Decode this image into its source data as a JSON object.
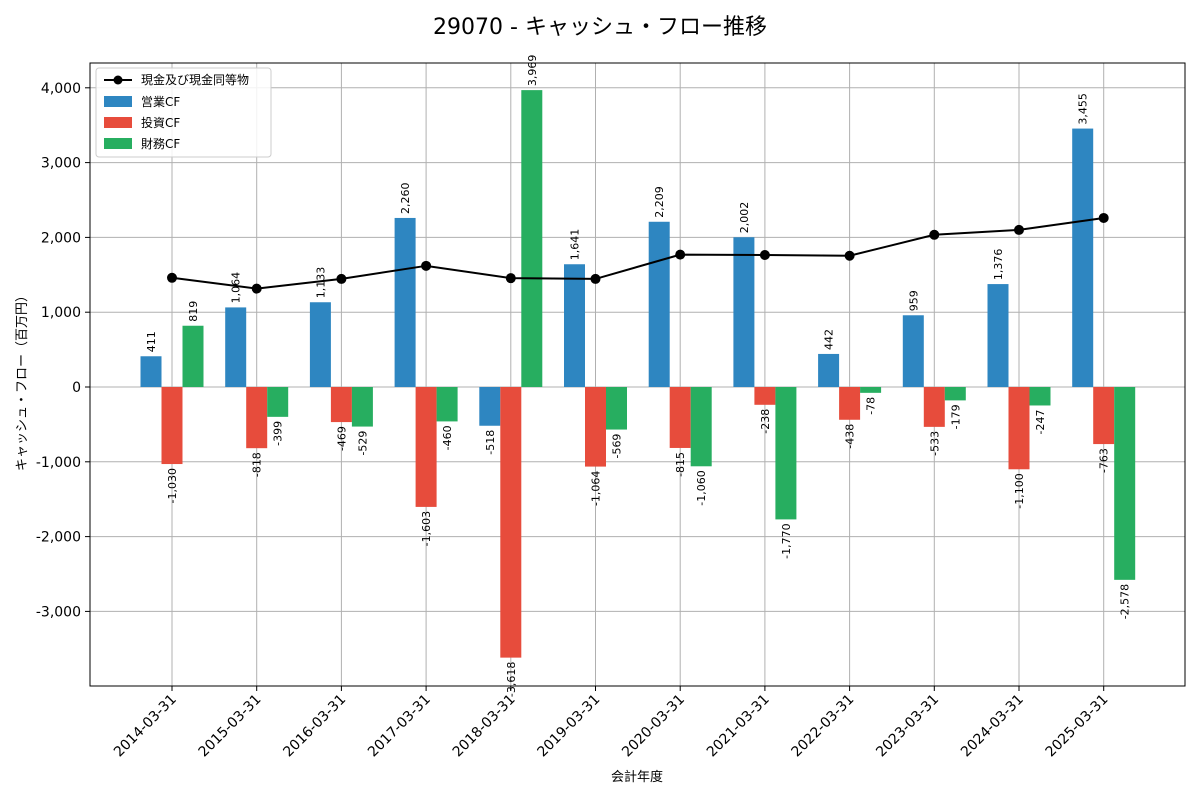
{
  "chart_data": {
    "type": "bar",
    "title": "29070 - キャッシュ・フロー推移",
    "xlabel": "会計年度",
    "ylabel": "キャッシュ・フロー（百万円）",
    "ylim": [
      -4000,
      4300
    ],
    "yticks": [
      -3000,
      -2000,
      -1000,
      0,
      1000,
      2000,
      3000,
      4000
    ],
    "ytick_labels": [
      "-3,000",
      "-2,000",
      "-1,000",
      "0",
      "1,000",
      "2,000",
      "3,000",
      "4,000"
    ],
    "grid": true,
    "legend_position": "top-left",
    "categories": [
      "2014-03-31",
      "2015-03-31",
      "2016-03-31",
      "2017-03-31",
      "2018-03-31",
      "2019-03-31",
      "2020-03-31",
      "2021-03-31",
      "2022-03-31",
      "2023-03-31",
      "2024-03-31",
      "2025-03-31"
    ],
    "series": [
      {
        "name": "営業CF",
        "kind": "bar",
        "color": "#2e86c1",
        "values": [
          411,
          1064,
          1133,
          2260,
          -518,
          1641,
          2209,
          2002,
          442,
          959,
          1376,
          3455
        ],
        "labels": [
          "411",
          "1,064",
          "1,133",
          "2,260",
          "-518",
          "1,641",
          "2,209",
          "2,002",
          "442",
          "959",
          "1,376",
          "3,455"
        ]
      },
      {
        "name": "投資CF",
        "kind": "bar",
        "color": "#e74c3c",
        "values": [
          -1030,
          -818,
          -469,
          -1603,
          -3618,
          -1064,
          -815,
          -238,
          -438,
          -533,
          -1100,
          -763
        ],
        "labels": [
          "-1,030",
          "-818",
          "-469",
          "-1,603",
          "-3,618",
          "-1,064",
          "-815",
          "-238",
          "-438",
          "-533",
          "-1,100",
          "-763"
        ]
      },
      {
        "name": "財務CF",
        "kind": "bar",
        "color": "#27ae60",
        "values": [
          819,
          -399,
          -529,
          -460,
          3969,
          -569,
          -1060,
          -1770,
          -78,
          -179,
          -247,
          -2578
        ],
        "labels": [
          "819",
          "-399",
          "-529",
          "-460",
          "3,969",
          "-569",
          "-1,060",
          "-1,770",
          "-78",
          "-179",
          "-247",
          "-2,578"
        ]
      },
      {
        "name": "現金及び現金同等物",
        "kind": "line",
        "color": "#000000",
        "values": [
          1460,
          1315,
          1445,
          1620,
          1455,
          1445,
          1770,
          1765,
          1755,
          2035,
          2100,
          2260
        ]
      }
    ]
  }
}
